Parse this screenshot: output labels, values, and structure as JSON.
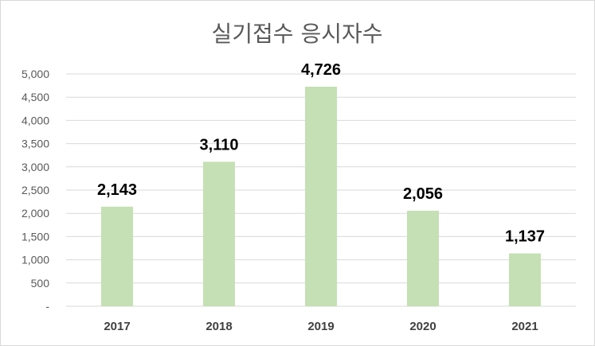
{
  "chart_data": {
    "type": "bar",
    "title": "실기접수 응시자수",
    "xlabel": "",
    "ylabel": "",
    "categories": [
      "2017",
      "2018",
      "2019",
      "2020",
      "2021"
    ],
    "values": [
      2143,
      3110,
      4726,
      2056,
      1137
    ],
    "data_labels": [
      "2,143",
      "3,110",
      "4,726",
      "2,056",
      "1,137"
    ],
    "ylim": [
      0,
      5000
    ],
    "y_ticks": [
      0,
      500,
      1000,
      1500,
      2000,
      2500,
      3000,
      3500,
      4000,
      4500,
      5000
    ],
    "y_tick_labels": [
      "-",
      "500",
      "1,000",
      "1,500",
      "2,000",
      "2,500",
      "3,000",
      "3,500",
      "4,000",
      "4,500",
      "5,000"
    ],
    "grid": true,
    "legend": "none",
    "bar_color": "#c5e0b4",
    "grid_color": "#d9d9d9"
  }
}
